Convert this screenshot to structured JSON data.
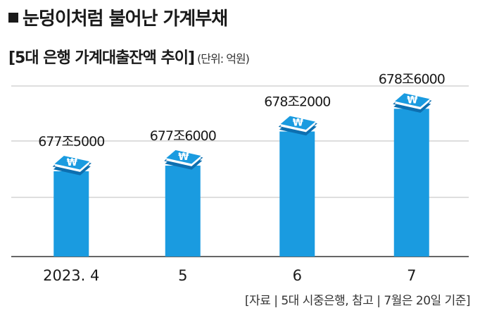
{
  "header": {
    "headline": "눈덩이처럼 불어난 가계부채",
    "subtitle": "[5대 은행 가계대출잔액 추이]",
    "unit": "(단위: 억원)"
  },
  "chart_data": {
    "type": "bar",
    "title": "[5대 은행 가계대출잔액 추이]",
    "unit": "(단위: 억원)",
    "categories": [
      "2023. 4",
      "5",
      "6",
      "7"
    ],
    "values": [
      6775000,
      6776000,
      6782000,
      6786000
    ],
    "value_labels": [
      "677조5000",
      "677조6000",
      "678조2000",
      "678조6000"
    ],
    "ylim": [
      6760000,
      6790000
    ],
    "grid": true,
    "bar_color": "#1a9be0",
    "icon": "money-stack-icon"
  },
  "footer": {
    "source": "[자료 | 5대 시중은행, 참고 | 7월은 20일 기준]"
  }
}
